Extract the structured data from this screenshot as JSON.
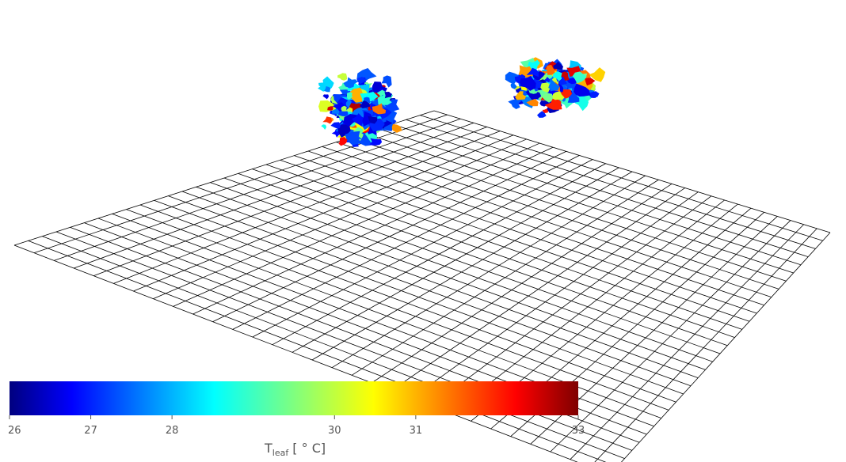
{
  "colorbar": {
    "colormap": "jet",
    "min": 26,
    "max": 33,
    "ticks": [
      "26",
      "27",
      "28",
      "30",
      "31",
      "33"
    ],
    "tick_values": [
      26,
      27,
      28,
      30,
      31,
      33
    ],
    "title_main": "T",
    "title_sub": "leaf",
    "title_unit": " [ ° C]"
  },
  "scene": {
    "ground_grid": true,
    "background": "#ffffff",
    "grid_line_color": "#000000"
  }
}
